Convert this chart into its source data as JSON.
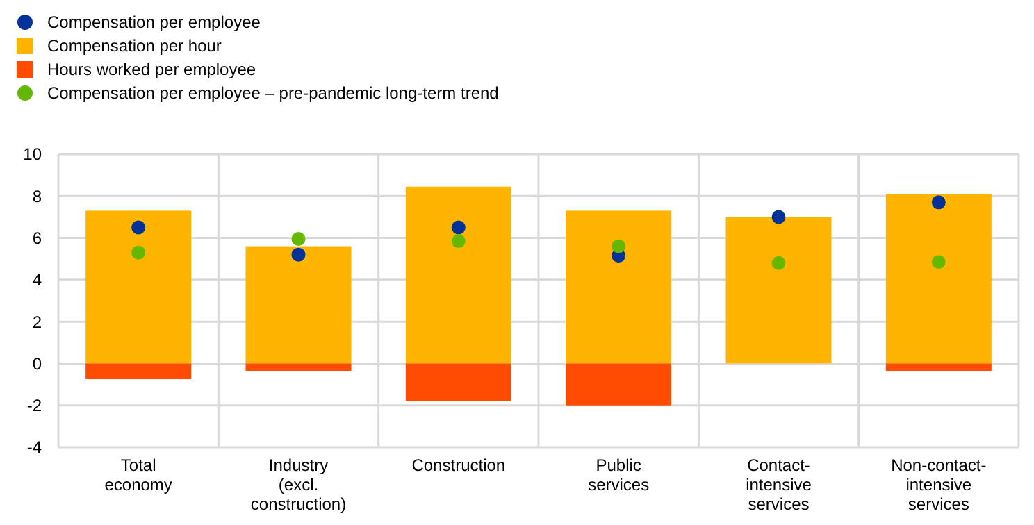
{
  "chart_data": {
    "type": "bar",
    "stacked": true,
    "categories": [
      "Total\neconomy",
      "Industry\n(excl.\nconstruction)",
      "Construction",
      "Public\nservices",
      "Contact-\nintensive\nservices",
      "Non-contact-\nintensive\nservices"
    ],
    "series": [
      {
        "name": "Compensation per employee",
        "type": "scatter",
        "color": "#003299",
        "x": [
          "Total\neconomy",
          "Industry\n(excl.\nconstruction)",
          "Construction",
          "Public\nservices",
          "Contact-\nintensive\nservices",
          "Non-contact-\nintensive\nservices"
        ],
        "values": [
          6.5,
          5.2,
          6.5,
          5.15,
          7.0,
          7.7
        ]
      },
      {
        "name": "Compensation per hour",
        "color": "#ffb400",
        "values": [
          7.3,
          5.6,
          8.45,
          7.3,
          7.0,
          8.1
        ]
      },
      {
        "name": "Hours worked per employee",
        "color": "#ff4b00",
        "values": [
          -0.75,
          -0.35,
          -1.8,
          -2.0,
          0,
          -0.35
        ]
      },
      {
        "name": "Compensation per employee – pre-pandemic long-term trend",
        "type": "scatter",
        "color": "#65b800",
        "x": [
          "Total\neconomy",
          "Industry\n(excl.\nconstruction)",
          "Construction",
          "Public\nservices",
          "Contact-\nintensive\nservices",
          "Non-contact-\nintensive\nservices"
        ],
        "values": [
          5.3,
          5.95,
          5.85,
          5.6,
          4.8,
          4.85
        ]
      }
    ],
    "ylim": [
      -4,
      10
    ],
    "yticks": [
      -4,
      -2,
      0,
      2,
      4,
      6,
      8,
      10
    ],
    "grid": true,
    "legend": "top left",
    "marker": "circle"
  }
}
